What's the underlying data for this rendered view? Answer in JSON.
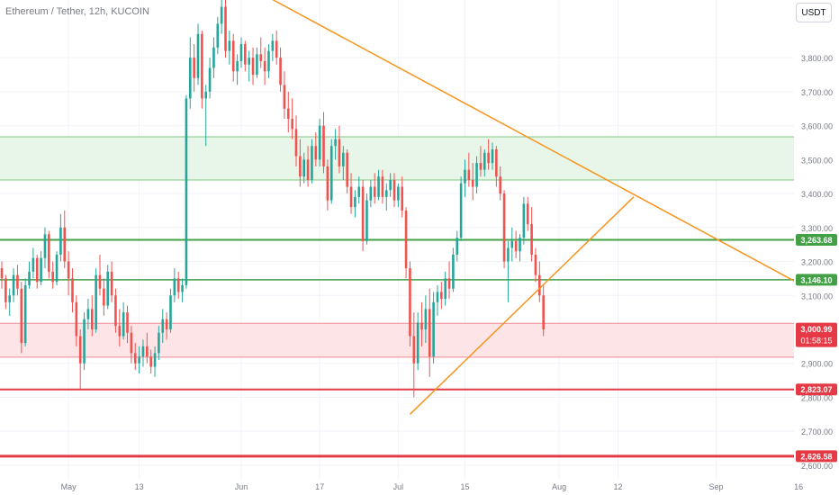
{
  "header": {
    "title": "Ethereum / Tether, 12h, KUCOIN"
  },
  "currency_button": "USDT",
  "chart_data": {
    "type": "candlestick",
    "title": "Ethereum / Tether, 12h, KUCOIN",
    "ylim": [
      2560,
      3970
    ],
    "y_ticks": [
      {
        "v": 3800,
        "label": "3,800.00"
      },
      {
        "v": 3700,
        "label": "3,700.00"
      },
      {
        "v": 3600,
        "label": "3,600.00"
      },
      {
        "v": 3500,
        "label": "3,500.00"
      },
      {
        "v": 3400,
        "label": "3,400.00"
      },
      {
        "v": 3300,
        "label": "3,300.00"
      },
      {
        "v": 3200,
        "label": "3,200.00"
      },
      {
        "v": 3100,
        "label": "3,100.00"
      },
      {
        "v": 2900,
        "label": "2,900.00"
      },
      {
        "v": 2800,
        "label": "2,800.00"
      },
      {
        "v": 2700,
        "label": "2,700.00"
      },
      {
        "v": 2600,
        "label": "2,600.00"
      }
    ],
    "x_ticks": [
      {
        "i": 17,
        "label": "May"
      },
      {
        "i": 35,
        "label": "13"
      },
      {
        "i": 61,
        "label": "Jun"
      },
      {
        "i": 81,
        "label": "17"
      },
      {
        "i": 101,
        "label": "Jul"
      },
      {
        "i": 118,
        "label": "15"
      },
      {
        "i": 142,
        "label": "Aug"
      },
      {
        "i": 157,
        "label": "12"
      },
      {
        "i": 182,
        "label": "Sep"
      },
      {
        "i": 203,
        "label": "16"
      }
    ],
    "zones": [
      {
        "name": "resistance-zone",
        "y1": 3440,
        "y2": 3567,
        "fill": "#e8f5e9",
        "stroke": "#81c784"
      },
      {
        "name": "support-zone",
        "y1": 2918,
        "y2": 3018,
        "fill": "#fde4e6",
        "stroke": "#f08a94"
      }
    ],
    "levels": [
      {
        "name": "level-3263",
        "value": 3263.68,
        "label": "3,263.68",
        "color": "#43a047",
        "width": 2
      },
      {
        "name": "level-3146",
        "value": 3146.1,
        "label": "3,146.10",
        "color": "#43a047",
        "width": 1.5
      },
      {
        "name": "level-2823",
        "value": 2823.07,
        "label": "2,823.07",
        "color": "#e53945",
        "width": 2
      },
      {
        "name": "level-2626",
        "value": 2626.58,
        "label": "2,626.58",
        "color": "#e53945",
        "width": 3
      }
    ],
    "trendlines": [
      {
        "name": "descending-trendline",
        "from": {
          "i": 66,
          "v": 3990
        },
        "to": {
          "i": 210,
          "v": 3092
        },
        "color": "#f7941d"
      },
      {
        "name": "ascending-trendline",
        "from": {
          "i": 104,
          "v": 2750
        },
        "to": {
          "i": 161,
          "v": 3390
        },
        "color": "#f7941d"
      }
    ],
    "current_price": {
      "value": 3000.99,
      "label": "3,000.99",
      "countdown": "01:58:15",
      "color": "#e53945"
    },
    "colors": {
      "up": "#26a69a",
      "down": "#ef5350"
    },
    "candles": [
      [
        3180,
        3200,
        3120,
        3150
      ],
      [
        3150,
        3160,
        3060,
        3080
      ],
      [
        3080,
        3120,
        3040,
        3100
      ],
      [
        3100,
        3180,
        3080,
        3160
      ],
      [
        3160,
        3190,
        3100,
        3120
      ],
      [
        3120,
        3140,
        2930,
        2960
      ],
      [
        2960,
        3150,
        2950,
        3130
      ],
      [
        3130,
        3200,
        3120,
        3170
      ],
      [
        3170,
        3240,
        3150,
        3210
      ],
      [
        3210,
        3220,
        3120,
        3140
      ],
      [
        3140,
        3230,
        3130,
        3210
      ],
      [
        3210,
        3300,
        3180,
        3280
      ],
      [
        3280,
        3290,
        3150,
        3170
      ],
      [
        3170,
        3200,
        3120,
        3140
      ],
      [
        3140,
        3230,
        3130,
        3220
      ],
      [
        3220,
        3340,
        3200,
        3300
      ],
      [
        3300,
        3350,
        3180,
        3200
      ],
      [
        3200,
        3230,
        3100,
        3150
      ],
      [
        3150,
        3180,
        3050,
        3080
      ],
      [
        3080,
        3100,
        2950,
        2980
      ],
      [
        2980,
        3000,
        2820,
        2900
      ],
      [
        2900,
        3050,
        2880,
        3030
      ],
      [
        3030,
        3090,
        3000,
        3060
      ],
      [
        3060,
        3100,
        2980,
        3000
      ],
      [
        3000,
        3180,
        2990,
        3160
      ],
      [
        3160,
        3220,
        3100,
        3120
      ],
      [
        3120,
        3150,
        3040,
        3070
      ],
      [
        3070,
        3190,
        3060,
        3170
      ],
      [
        3170,
        3200,
        3080,
        3100
      ],
      [
        3100,
        3120,
        2990,
        3010
      ],
      [
        3010,
        3060,
        2950,
        2980
      ],
      [
        2980,
        3080,
        2970,
        3050
      ],
      [
        3050,
        3070,
        2960,
        2990
      ],
      [
        2990,
        3010,
        2900,
        2930
      ],
      [
        2930,
        2960,
        2880,
        2900
      ],
      [
        2900,
        2950,
        2870,
        2920
      ],
      [
        2920,
        2970,
        2890,
        2950
      ],
      [
        2950,
        2990,
        2900,
        2920
      ],
      [
        2920,
        2940,
        2870,
        2890
      ],
      [
        2890,
        2950,
        2860,
        2930
      ],
      [
        2930,
        3010,
        2910,
        2990
      ],
      [
        2990,
        3060,
        2960,
        3030
      ],
      [
        3030,
        3050,
        2970,
        3000
      ],
      [
        3000,
        3120,
        2990,
        3100
      ],
      [
        3100,
        3180,
        3080,
        3150
      ],
      [
        3150,
        3170,
        3090,
        3110
      ],
      [
        3110,
        3150,
        3080,
        3130
      ],
      [
        3130,
        3690,
        3120,
        3680
      ],
      [
        3680,
        3860,
        3650,
        3800
      ],
      [
        3800,
        3840,
        3700,
        3740
      ],
      [
        3740,
        3900,
        3720,
        3870
      ],
      [
        3870,
        3880,
        3650,
        3680
      ],
      [
        3680,
        3720,
        3540,
        3700
      ],
      [
        3700,
        3800,
        3680,
        3770
      ],
      [
        3770,
        3860,
        3740,
        3830
      ],
      [
        3830,
        3920,
        3810,
        3900
      ],
      [
        3900,
        3990,
        3870,
        3950
      ],
      [
        3950,
        3970,
        3800,
        3820
      ],
      [
        3820,
        3880,
        3780,
        3850
      ],
      [
        3850,
        3870,
        3730,
        3760
      ],
      [
        3760,
        3810,
        3720,
        3790
      ],
      [
        3790,
        3860,
        3770,
        3840
      ],
      [
        3840,
        3850,
        3760,
        3780
      ],
      [
        3780,
        3820,
        3730,
        3800
      ],
      [
        3800,
        3830,
        3720,
        3750
      ],
      [
        3750,
        3830,
        3740,
        3810
      ],
      [
        3810,
        3860,
        3770,
        3790
      ],
      [
        3790,
        3830,
        3720,
        3760
      ],
      [
        3760,
        3840,
        3740,
        3820
      ],
      [
        3820,
        3870,
        3790,
        3850
      ],
      [
        3850,
        3880,
        3780,
        3800
      ],
      [
        3800,
        3830,
        3700,
        3720
      ],
      [
        3720,
        3760,
        3620,
        3650
      ],
      [
        3650,
        3700,
        3580,
        3620
      ],
      [
        3620,
        3680,
        3560,
        3590
      ],
      [
        3590,
        3630,
        3480,
        3510
      ],
      [
        3510,
        3560,
        3420,
        3450
      ],
      [
        3450,
        3520,
        3430,
        3500
      ],
      [
        3500,
        3540,
        3420,
        3440
      ],
      [
        3440,
        3560,
        3430,
        3540
      ],
      [
        3540,
        3580,
        3480,
        3500
      ],
      [
        3500,
        3620,
        3480,
        3600
      ],
      [
        3600,
        3640,
        3460,
        3480
      ],
      [
        3480,
        3500,
        3350,
        3380
      ],
      [
        3380,
        3560,
        3370,
        3540
      ],
      [
        3540,
        3590,
        3500,
        3560
      ],
      [
        3560,
        3600,
        3460,
        3480
      ],
      [
        3480,
        3540,
        3440,
        3520
      ],
      [
        3520,
        3530,
        3400,
        3420
      ],
      [
        3420,
        3460,
        3340,
        3360
      ],
      [
        3360,
        3410,
        3330,
        3390
      ],
      [
        3390,
        3450,
        3370,
        3420
      ],
      [
        3420,
        3440,
        3230,
        3260
      ],
      [
        3260,
        3400,
        3250,
        3380
      ],
      [
        3380,
        3440,
        3360,
        3420
      ],
      [
        3420,
        3460,
        3370,
        3390
      ],
      [
        3390,
        3470,
        3380,
        3450
      ],
      [
        3450,
        3470,
        3370,
        3390
      ],
      [
        3390,
        3430,
        3350,
        3410
      ],
      [
        3410,
        3460,
        3390,
        3440
      ],
      [
        3440,
        3460,
        3360,
        3380
      ],
      [
        3380,
        3430,
        3360,
        3420
      ],
      [
        3420,
        3450,
        3330,
        3350
      ],
      [
        3350,
        3360,
        3150,
        3180
      ],
      [
        3180,
        3200,
        2950,
        2980
      ],
      [
        2980,
        3050,
        2800,
        2900
      ],
      [
        2900,
        3050,
        2880,
        3020
      ],
      [
        3020,
        3080,
        2950,
        3000
      ],
      [
        3000,
        3100,
        2960,
        3060
      ],
      [
        3060,
        3120,
        2860,
        2920
      ],
      [
        2920,
        3110,
        2900,
        3080
      ],
      [
        3080,
        3130,
        3040,
        3110
      ],
      [
        3110,
        3140,
        3060,
        3090
      ],
      [
        3090,
        3170,
        3070,
        3150
      ],
      [
        3150,
        3200,
        3090,
        3120
      ],
      [
        3120,
        3240,
        3110,
        3220
      ],
      [
        3220,
        3290,
        3200,
        3270
      ],
      [
        3270,
        3450,
        3260,
        3430
      ],
      [
        3430,
        3500,
        3390,
        3470
      ],
      [
        3470,
        3520,
        3420,
        3440
      ],
      [
        3440,
        3490,
        3380,
        3420
      ],
      [
        3420,
        3510,
        3400,
        3490
      ],
      [
        3490,
        3540,
        3450,
        3470
      ],
      [
        3470,
        3530,
        3450,
        3520
      ],
      [
        3520,
        3560,
        3470,
        3490
      ],
      [
        3490,
        3550,
        3470,
        3530
      ],
      [
        3530,
        3540,
        3420,
        3450
      ],
      [
        3450,
        3480,
        3380,
        3400
      ],
      [
        3400,
        3410,
        3180,
        3200
      ],
      [
        3200,
        3260,
        3080,
        3240
      ],
      [
        3240,
        3300,
        3200,
        3260
      ],
      [
        3260,
        3290,
        3210,
        3230
      ],
      [
        3230,
        3280,
        3200,
        3270
      ],
      [
        3270,
        3390,
        3250,
        3370
      ],
      [
        3370,
        3390,
        3290,
        3310
      ],
      [
        3310,
        3360,
        3200,
        3220
      ],
      [
        3220,
        3240,
        3140,
        3160
      ],
      [
        3160,
        3200,
        3080,
        3100
      ],
      [
        3100,
        3130,
        2980,
        3000
      ]
    ]
  }
}
